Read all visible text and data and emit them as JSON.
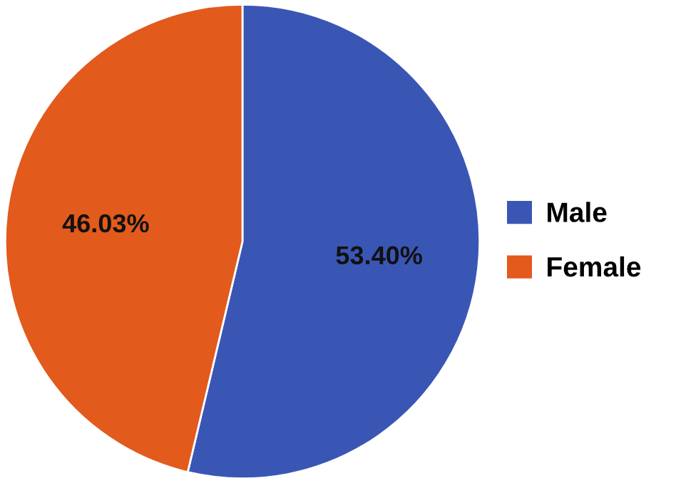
{
  "chart_data": {
    "type": "pie",
    "categories": [
      "Male",
      "Female"
    ],
    "values": [
      53.4,
      46.03
    ],
    "colors": [
      "#3a56b5",
      "#e25a1c"
    ],
    "value_labels": [
      "53.40%",
      "46.03%"
    ],
    "legend": "right"
  }
}
